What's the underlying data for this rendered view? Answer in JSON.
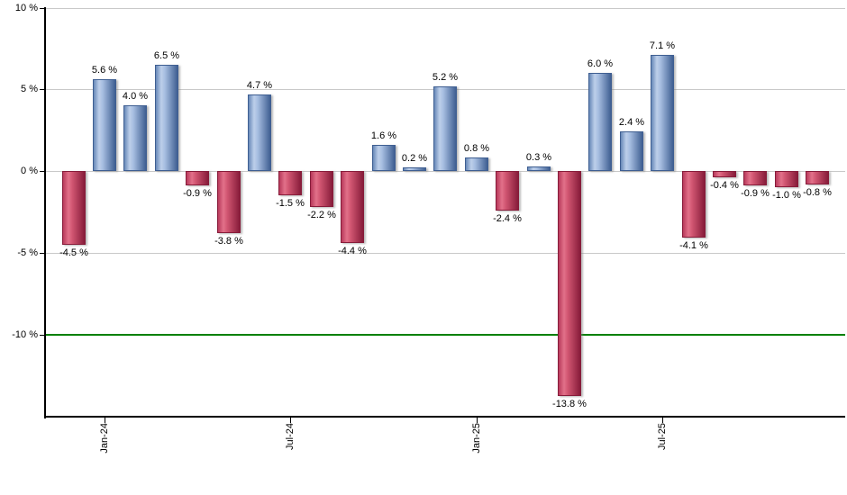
{
  "chart_data": {
    "type": "bar",
    "title": "",
    "xlabel": "",
    "ylabel": "",
    "unit": "%",
    "values": [
      -4.5,
      5.6,
      4.0,
      6.5,
      -0.9,
      -3.8,
      4.7,
      -1.5,
      -2.2,
      -4.4,
      1.6,
      0.2,
      5.2,
      0.8,
      -2.4,
      0.3,
      -13.8,
      6.0,
      2.4,
      7.1,
      -4.1,
      -0.4,
      -0.9,
      -1.0,
      -0.8
    ],
    "bar_labels": [
      "-4.5 %",
      "5.6 %",
      "4.0 %",
      "6.5 %",
      "-0.9 %",
      "-3.8 %",
      "4.7 %",
      "-1.5 %",
      "-2.2 %",
      "-4.4 %",
      "1.6 %",
      "0.2 %",
      "5.2 %",
      "0.8 %",
      "-2.4 %",
      "0.3 %",
      "-13.8 %",
      "6.0 %",
      "2.4 %",
      "7.1 %",
      "-4.1 %",
      "-0.4 %",
      "-0.9 %",
      "-1.0 %",
      "-0.8 %"
    ],
    "x_ticks": [
      {
        "label": "Jan-24",
        "bar_index": 1
      },
      {
        "label": "Jul-24",
        "bar_index": 7
      },
      {
        "label": "Jan-25",
        "bar_index": 13
      },
      {
        "label": "Jul-25",
        "bar_index": 19
      }
    ],
    "y_ticks": [
      {
        "value": 10,
        "label": "10 %"
      },
      {
        "value": 5,
        "label": "5 %"
      },
      {
        "value": 0,
        "label": "0 %"
      },
      {
        "value": -5,
        "label": "-5 %"
      },
      {
        "value": -10,
        "label": "-10 %"
      }
    ],
    "ylim": [
      -15.1,
      10
    ],
    "grid": true,
    "legend": "none",
    "reference_line": {
      "value": -10,
      "color": "#008000"
    },
    "colors": {
      "positive_bar": "#7b9ccb",
      "negative_bar": "#c23a5c",
      "positive_gradient": [
        "#6889b8",
        "#bdcfea",
        "#a6bde0",
        "#3f5f92"
      ],
      "negative_gradient": [
        "#b8395b",
        "#e2718a",
        "#d15672",
        "#871c3a"
      ],
      "gridline": "#c9c9c9",
      "reference_line_color": "#008000",
      "axis": "#000000",
      "label_text": "#000000",
      "background": "#ffffff"
    }
  }
}
